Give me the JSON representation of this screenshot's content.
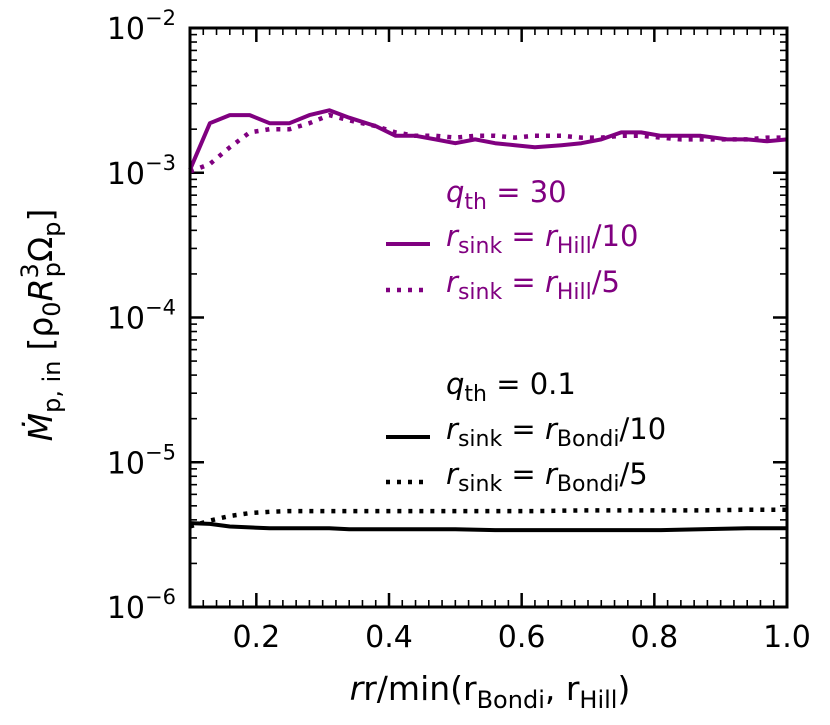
{
  "chart_data": {
    "type": "line",
    "xlabel": {
      "base": "r/min(r",
      "sub1": "Bondi",
      "mid": ", r",
      "sub2": "Hill",
      "end": ")"
    },
    "ylabel": {
      "main": "Ṁ",
      "sub": "p, in",
      "unit_a": "[ρ",
      "unit_a_sub": "0",
      "unit_b": "R",
      "unit_b_sup": "3",
      "unit_b_sub": "p",
      "unit_c": "Ω",
      "unit_c_sub": "p",
      "unit_end": "]"
    },
    "xlim": [
      0.1,
      1.0
    ],
    "ylim": [
      1e-06,
      0.01
    ],
    "yscale": "log",
    "x_ticks": [
      "0.2",
      "0.4",
      "0.6",
      "0.8",
      "1.0"
    ],
    "y_ticks": [
      {
        "value": 1e-06,
        "base": "10",
        "exp": "−6"
      },
      {
        "value": 1e-05,
        "base": "10",
        "exp": "−5"
      },
      {
        "value": 0.0001,
        "base": "10",
        "exp": "−4"
      },
      {
        "value": 0.001,
        "base": "10",
        "exp": "−3"
      },
      {
        "value": 0.01,
        "base": "10",
        "exp": "−2"
      }
    ],
    "legend_groups": [
      {
        "header": {
          "var": "q",
          "sub": "th",
          "value": " = 30"
        },
        "color": "#800080"
      },
      {
        "header": {
          "var": "q",
          "sub": "th",
          "value": " = 0.1"
        },
        "color": "#000000"
      }
    ],
    "series": [
      {
        "name": "r_sink = r_Hill/10",
        "label": {
          "var": "r",
          "sub": "sink",
          "eq": " = r",
          "sub2": "Hill",
          "end": "/10"
        },
        "color": "#800080",
        "style": "solid",
        "group": 0,
        "x": [
          0.1,
          0.13,
          0.16,
          0.19,
          0.22,
          0.25,
          0.28,
          0.31,
          0.34,
          0.38,
          0.41,
          0.44,
          0.47,
          0.5,
          0.53,
          0.56,
          0.59,
          0.62,
          0.66,
          0.69,
          0.72,
          0.75,
          0.78,
          0.81,
          0.84,
          0.87,
          0.91,
          0.94,
          0.97,
          1.0
        ],
        "y": [
          0.00105,
          0.0022,
          0.0025,
          0.0025,
          0.0022,
          0.0022,
          0.0025,
          0.0027,
          0.0024,
          0.0021,
          0.0018,
          0.0018,
          0.0017,
          0.0016,
          0.0017,
          0.0016,
          0.00155,
          0.0015,
          0.00155,
          0.0016,
          0.0017,
          0.0019,
          0.0019,
          0.0018,
          0.0018,
          0.0018,
          0.0017,
          0.0017,
          0.00165,
          0.0017
        ]
      },
      {
        "name": "r_sink = r_Hill/5",
        "label": {
          "var": "r",
          "sub": "sink",
          "eq": " = r",
          "sub2": "Hill",
          "end": "/5"
        },
        "color": "#800080",
        "style": "dotted",
        "group": 0,
        "x": [
          0.1,
          0.13,
          0.16,
          0.19,
          0.22,
          0.25,
          0.28,
          0.31,
          0.34,
          0.38,
          0.41,
          0.44,
          0.47,
          0.5,
          0.53,
          0.56,
          0.59,
          0.62,
          0.66,
          0.69,
          0.72,
          0.75,
          0.78,
          0.81,
          0.84,
          0.87,
          0.91,
          0.94,
          0.97,
          1.0
        ],
        "y": [
          0.00102,
          0.00115,
          0.0015,
          0.0019,
          0.002,
          0.002,
          0.0022,
          0.0025,
          0.0023,
          0.0021,
          0.0019,
          0.0018,
          0.0018,
          0.00175,
          0.0018,
          0.0018,
          0.00175,
          0.0018,
          0.0018,
          0.00175,
          0.00175,
          0.0018,
          0.0018,
          0.00175,
          0.0017,
          0.0017,
          0.0017,
          0.0017,
          0.00175,
          0.00175
        ]
      },
      {
        "name": "r_sink = r_Bondi/10",
        "label": {
          "var": "r",
          "sub": "sink",
          "eq": " = r",
          "sub2": "Bondi",
          "end": "/10"
        },
        "color": "#000000",
        "style": "solid",
        "group": 1,
        "x": [
          0.1,
          0.13,
          0.16,
          0.19,
          0.22,
          0.25,
          0.28,
          0.31,
          0.34,
          0.38,
          0.44,
          0.5,
          0.56,
          0.62,
          0.69,
          0.75,
          0.81,
          0.87,
          0.94,
          1.0
        ],
        "y": [
          3.8e-06,
          3.75e-06,
          3.6e-06,
          3.55e-06,
          3.5e-06,
          3.5e-06,
          3.5e-06,
          3.5e-06,
          3.45e-06,
          3.45e-06,
          3.45e-06,
          3.45e-06,
          3.4e-06,
          3.4e-06,
          3.4e-06,
          3.4e-06,
          3.4e-06,
          3.45e-06,
          3.5e-06,
          3.5e-06
        ]
      },
      {
        "name": "r_sink = r_Bondi/5",
        "label": {
          "var": "r",
          "sub": "sink",
          "eq": " = r",
          "sub2": "Bondi",
          "end": "/5"
        },
        "color": "#000000",
        "style": "dotted",
        "group": 1,
        "x": [
          0.1,
          0.13,
          0.16,
          0.19,
          0.22,
          0.25,
          0.28,
          0.31,
          0.34,
          0.38,
          0.44,
          0.5,
          0.56,
          0.62,
          0.69,
          0.75,
          0.81,
          0.87,
          0.94,
          1.0
        ],
        "y": [
          3.6e-06,
          3.95e-06,
          4.25e-06,
          4.45e-06,
          4.55e-06,
          4.6e-06,
          4.6e-06,
          4.6e-06,
          4.6e-06,
          4.6e-06,
          4.6e-06,
          4.6e-06,
          4.6e-06,
          4.6e-06,
          4.65e-06,
          4.65e-06,
          4.65e-06,
          4.65e-06,
          4.7e-06,
          4.7e-06
        ]
      }
    ]
  }
}
